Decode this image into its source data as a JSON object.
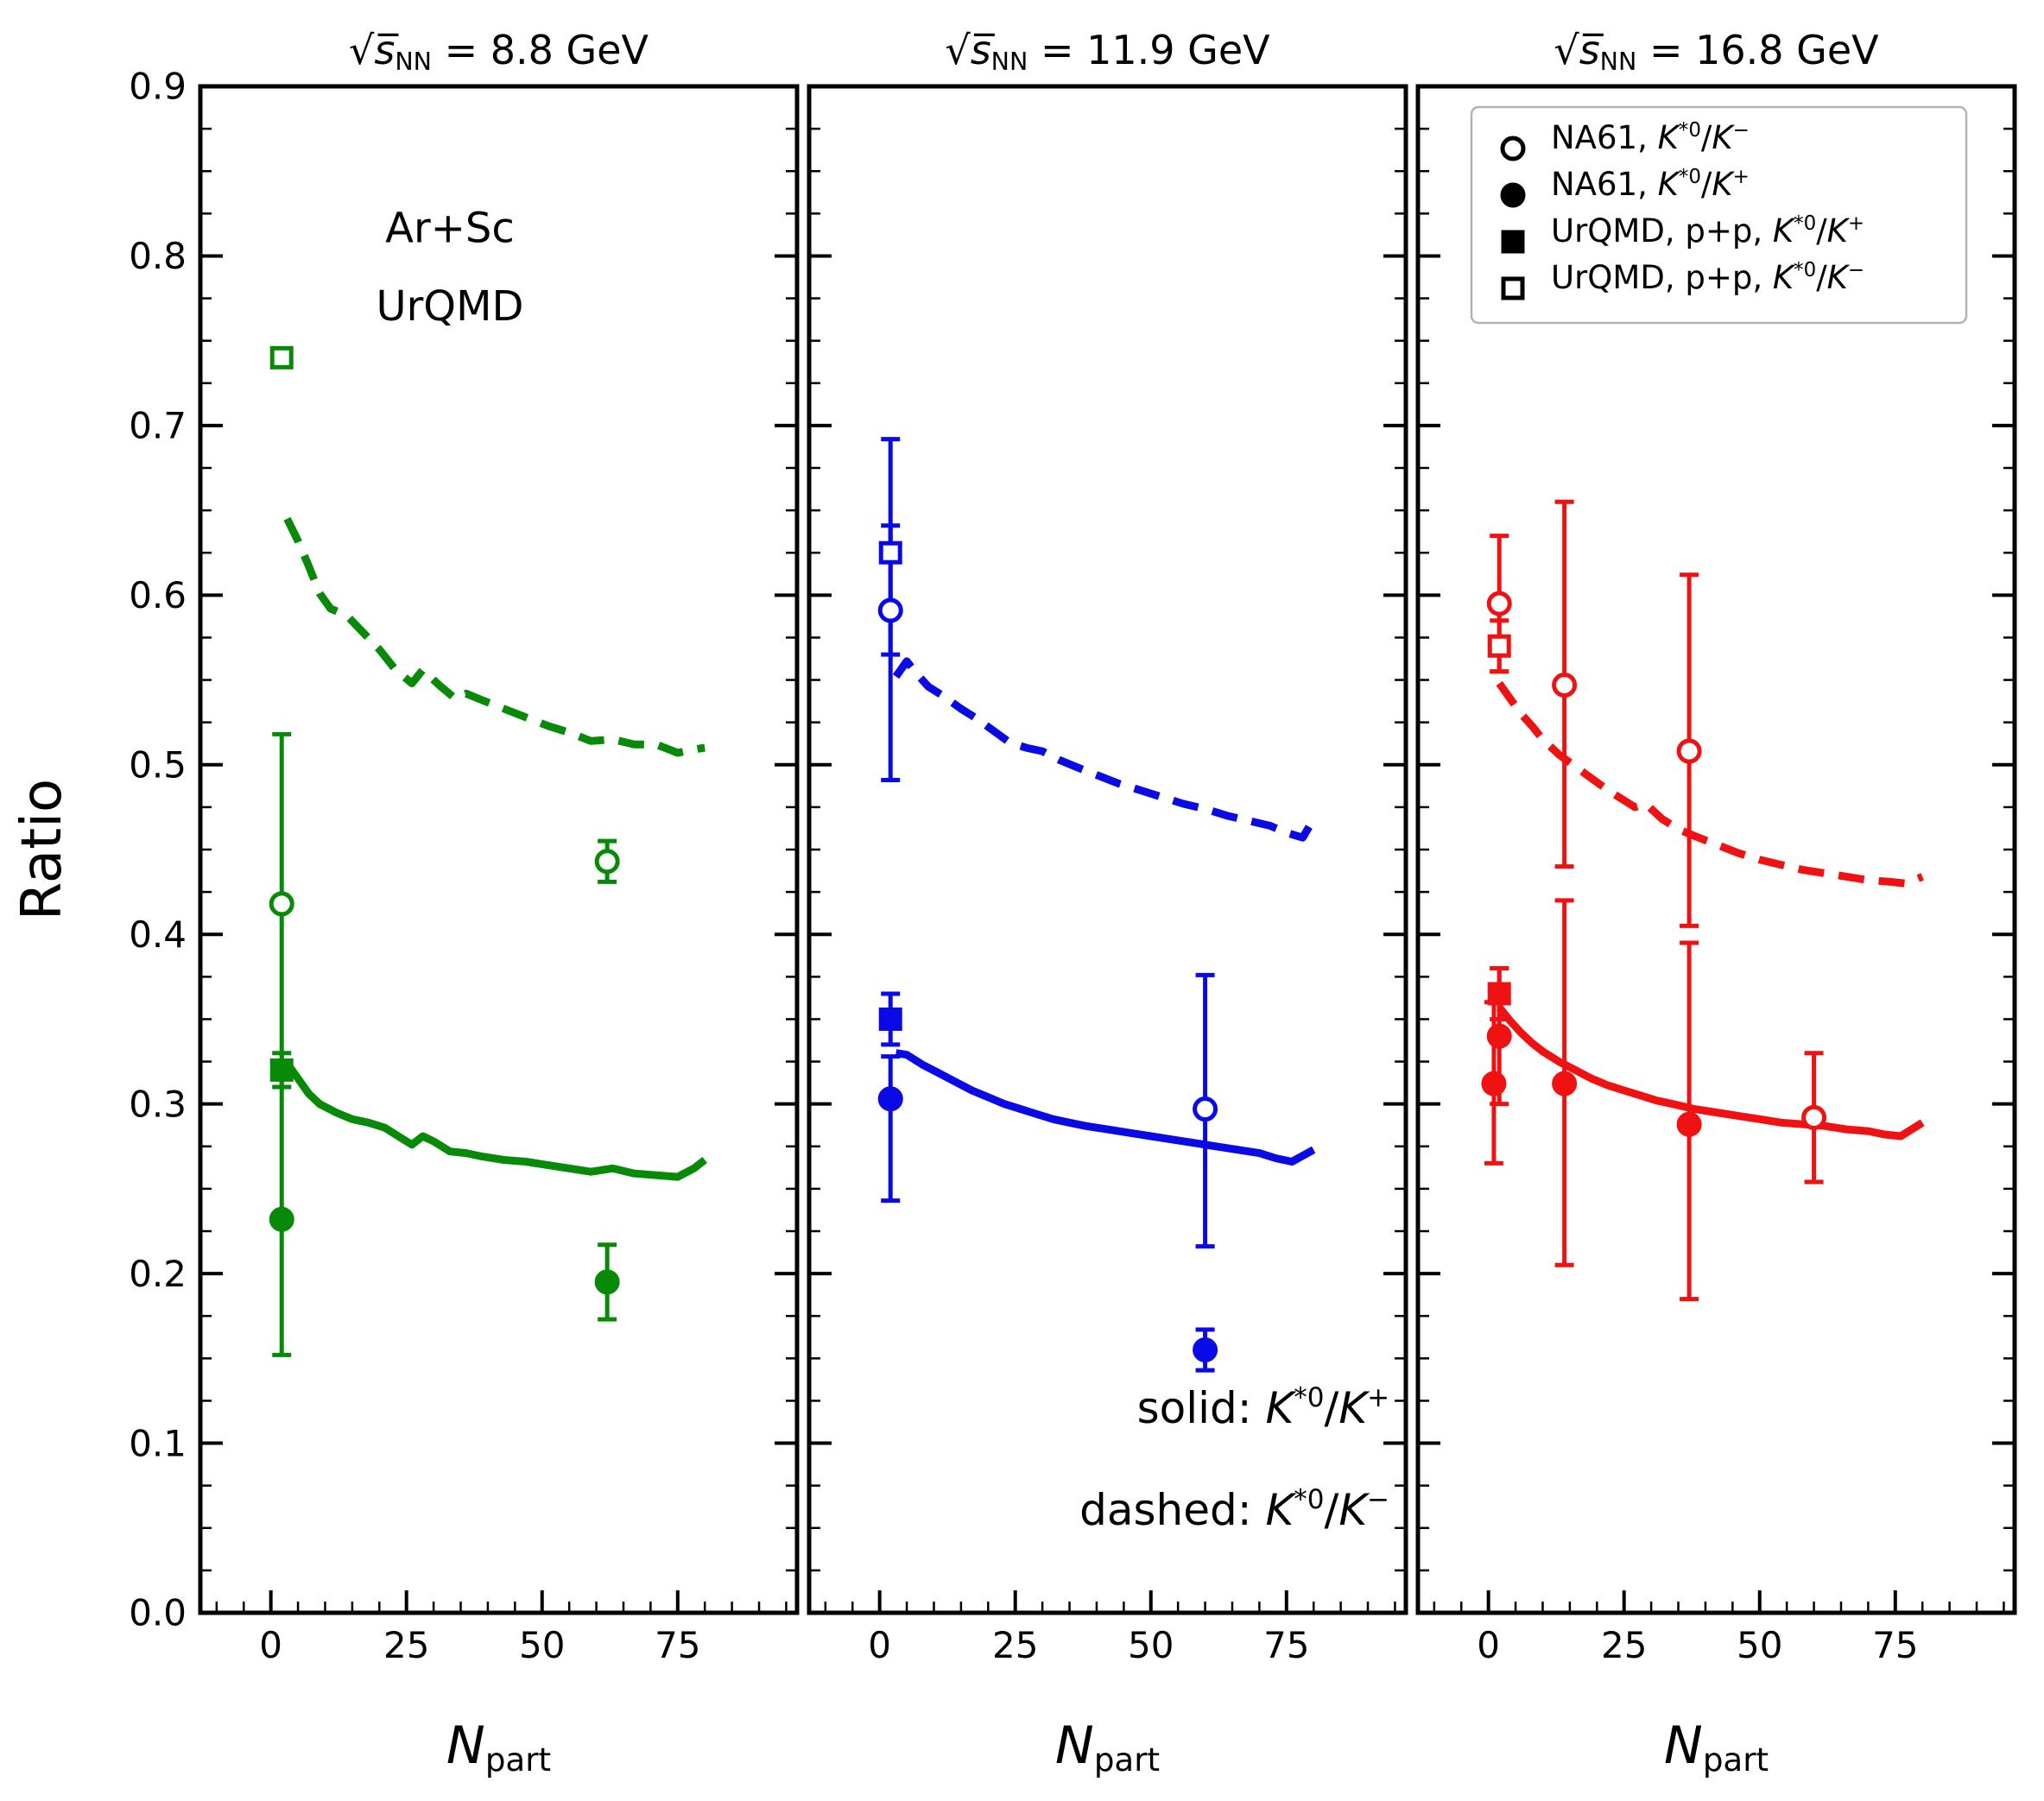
{
  "chart_data": {
    "type": "line",
    "ylabel": "Ratio",
    "xlabel": "$N$_{part}",
    "ylim": [
      0.0,
      0.9
    ],
    "xlim": [
      -13,
      97
    ],
    "y_tick_labels": [
      "0.0",
      "0.1",
      "0.2",
      "0.3",
      "0.4",
      "0.5",
      "0.6",
      "0.7",
      "0.8",
      "0.9"
    ],
    "x_major_ticks": [
      0,
      25,
      50,
      75
    ],
    "x_tick_labels": [
      "0",
      "25",
      "50",
      "75"
    ],
    "y_minor_step": 0.025,
    "x_minor_step": 5,
    "grid": false,
    "legend_position": "top-right-panel-3",
    "line_style_note": {
      "panel": 1,
      "x": 94,
      "y": [
        0.112,
        0.052
      ],
      "lines": [
        "solid: $K$^{*0}/$K$^{+}",
        "dashed: $K$^{*0}/$K$^{−}"
      ]
    },
    "system_annotation": {
      "panel": 0,
      "x": 33,
      "y": [
        0.808,
        0.762
      ],
      "lines": [
        "Ar+Sc",
        "UrQMD"
      ]
    },
    "legend": {
      "panel": 2,
      "entries": [
        {
          "marker": "open-circle",
          "label": "NA61, $K$^{*0}/$K$^{−}"
        },
        {
          "marker": "filled-circle",
          "label": "NA61, $K$^{*0}/$K$^{+}"
        },
        {
          "marker": "filled-square",
          "label": "UrQMD, p+p, $K$^{*0}/$K$^{+}"
        },
        {
          "marker": "open-square",
          "label": "UrQMD, p+p, $K$^{*0}/$K$^{−}"
        }
      ]
    },
    "panels": [
      {
        "title": "√$s̅$_{NN} = 8.8 GeV",
        "color": "#078a07",
        "dashed_curve": [
          [
            3,
            0.645
          ],
          [
            5,
            0.632
          ],
          [
            7,
            0.617
          ],
          [
            9,
            0.601
          ],
          [
            11,
            0.592
          ],
          [
            14,
            0.588
          ],
          [
            17,
            0.578
          ],
          [
            20,
            0.568
          ],
          [
            23,
            0.556
          ],
          [
            26,
            0.548
          ],
          [
            28,
            0.556
          ],
          [
            31,
            0.547
          ],
          [
            34,
            0.539
          ],
          [
            36,
            0.542
          ],
          [
            39,
            0.538
          ],
          [
            43,
            0.533
          ],
          [
            47,
            0.528
          ],
          [
            51,
            0.523
          ],
          [
            55,
            0.519
          ],
          [
            59,
            0.514
          ],
          [
            63,
            0.515
          ],
          [
            67,
            0.512
          ],
          [
            71,
            0.512
          ],
          [
            75,
            0.507
          ],
          [
            78,
            0.509
          ],
          [
            80,
            0.51
          ]
        ],
        "solid_curve": [
          [
            3,
            0.324
          ],
          [
            5,
            0.315
          ],
          [
            7,
            0.306
          ],
          [
            9,
            0.3
          ],
          [
            12,
            0.295
          ],
          [
            15,
            0.291
          ],
          [
            18,
            0.289
          ],
          [
            21,
            0.286
          ],
          [
            24,
            0.28
          ],
          [
            26,
            0.276
          ],
          [
            28,
            0.281
          ],
          [
            30,
            0.278
          ],
          [
            33,
            0.272
          ],
          [
            36,
            0.271
          ],
          [
            39,
            0.269
          ],
          [
            43,
            0.267
          ],
          [
            47,
            0.266
          ],
          [
            51,
            0.264
          ],
          [
            55,
            0.262
          ],
          [
            59,
            0.26
          ],
          [
            63,
            0.262
          ],
          [
            67,
            0.259
          ],
          [
            71,
            0.258
          ],
          [
            75,
            0.257
          ],
          [
            78,
            0.262
          ],
          [
            80,
            0.267
          ]
        ],
        "points": [
          {
            "marker": "open-square",
            "x": 2,
            "y": 0.74,
            "lo": 0,
            "hi": 0
          },
          {
            "marker": "filled-square",
            "x": 2,
            "y": 0.32,
            "lo": 0.01,
            "hi": 0.01
          },
          {
            "marker": "open-circle",
            "x": 2,
            "y": 0.418,
            "lo": 0.1,
            "hi": 0.1
          },
          {
            "marker": "filled-circle",
            "x": 2,
            "y": 0.232,
            "lo": 0.08,
            "hi": 0.09
          },
          {
            "marker": "open-circle",
            "x": 62,
            "y": 0.443,
            "lo": 0.012,
            "hi": 0.012
          },
          {
            "marker": "filled-circle",
            "x": 62,
            "y": 0.195,
            "lo": 0.022,
            "hi": 0.022
          }
        ]
      },
      {
        "title": "√$s̅$_{NN} = 11.9 GeV",
        "color": "#0a0ae6",
        "dashed_curve": [
          [
            3,
            0.552
          ],
          [
            5,
            0.561
          ],
          [
            7,
            0.553
          ],
          [
            9,
            0.546
          ],
          [
            12,
            0.54
          ],
          [
            15,
            0.533
          ],
          [
            18,
            0.527
          ],
          [
            21,
            0.52
          ],
          [
            24,
            0.513
          ],
          [
            27,
            0.51
          ],
          [
            30,
            0.508
          ],
          [
            33,
            0.503
          ],
          [
            36,
            0.499
          ],
          [
            40,
            0.494
          ],
          [
            44,
            0.489
          ],
          [
            48,
            0.485
          ],
          [
            52,
            0.481
          ],
          [
            56,
            0.477
          ],
          [
            60,
            0.474
          ],
          [
            64,
            0.47
          ],
          [
            68,
            0.467
          ],
          [
            72,
            0.464
          ],
          [
            75,
            0.46
          ],
          [
            78,
            0.457
          ],
          [
            80,
            0.468
          ]
        ],
        "solid_curve": [
          [
            3,
            0.33
          ],
          [
            5,
            0.329
          ],
          [
            8,
            0.323
          ],
          [
            11,
            0.318
          ],
          [
            14,
            0.313
          ],
          [
            17,
            0.308
          ],
          [
            20,
            0.304
          ],
          [
            23,
            0.3
          ],
          [
            26,
            0.297
          ],
          [
            29,
            0.294
          ],
          [
            32,
            0.291
          ],
          [
            35,
            0.289
          ],
          [
            38,
            0.287
          ],
          [
            42,
            0.285
          ],
          [
            46,
            0.283
          ],
          [
            50,
            0.281
          ],
          [
            54,
            0.279
          ],
          [
            58,
            0.277
          ],
          [
            62,
            0.275
          ],
          [
            66,
            0.273
          ],
          [
            70,
            0.271
          ],
          [
            73,
            0.268
          ],
          [
            76,
            0.266
          ],
          [
            80,
            0.273
          ]
        ],
        "points": [
          {
            "marker": "open-square",
            "x": 2,
            "y": 0.625,
            "lo": 0.06,
            "hi": 0.067
          },
          {
            "marker": "open-circle",
            "x": 2,
            "y": 0.591,
            "lo": 0.1,
            "hi": 0.05
          },
          {
            "marker": "filled-square",
            "x": 2,
            "y": 0.35,
            "lo": 0.015,
            "hi": 0.015
          },
          {
            "marker": "filled-circle",
            "x": 2,
            "y": 0.303,
            "lo": 0.06,
            "hi": 0.025
          },
          {
            "marker": "open-circle",
            "x": 60,
            "y": 0.297,
            "lo": 0.081,
            "hi": 0.079
          },
          {
            "marker": "filled-circle",
            "x": 60,
            "y": 0.155,
            "lo": 0.012,
            "hi": 0.012
          }
        ]
      },
      {
        "title": "√$s̅$_{NN} = 16.8 GeV",
        "color": "#f01212",
        "dashed_curve": [
          [
            2,
            0.548
          ],
          [
            4,
            0.539
          ],
          [
            6,
            0.53
          ],
          [
            8,
            0.523
          ],
          [
            10,
            0.515
          ],
          [
            13,
            0.506
          ],
          [
            16,
            0.499
          ],
          [
            19,
            0.492
          ],
          [
            22,
            0.485
          ],
          [
            25,
            0.479
          ],
          [
            27,
            0.475
          ],
          [
            29,
            0.477
          ],
          [
            32,
            0.468
          ],
          [
            35,
            0.462
          ],
          [
            38,
            0.458
          ],
          [
            42,
            0.453
          ],
          [
            46,
            0.448
          ],
          [
            50,
            0.444
          ],
          [
            54,
            0.441
          ],
          [
            58,
            0.438
          ],
          [
            62,
            0.436
          ],
          [
            66,
            0.434
          ],
          [
            70,
            0.432
          ],
          [
            74,
            0.431
          ],
          [
            77,
            0.43
          ],
          [
            80,
            0.434
          ]
        ],
        "solid_curve": [
          [
            2,
            0.357
          ],
          [
            4,
            0.349
          ],
          [
            6,
            0.342
          ],
          [
            8,
            0.336
          ],
          [
            10,
            0.331
          ],
          [
            13,
            0.325
          ],
          [
            16,
            0.32
          ],
          [
            19,
            0.315
          ],
          [
            22,
            0.311
          ],
          [
            25,
            0.308
          ],
          [
            28,
            0.305
          ],
          [
            31,
            0.302
          ],
          [
            34,
            0.3
          ],
          [
            38,
            0.297
          ],
          [
            42,
            0.295
          ],
          [
            46,
            0.293
          ],
          [
            50,
            0.291
          ],
          [
            54,
            0.289
          ],
          [
            58,
            0.288
          ],
          [
            62,
            0.287
          ],
          [
            66,
            0.285
          ],
          [
            70,
            0.284
          ],
          [
            73,
            0.282
          ],
          [
            76,
            0.281
          ],
          [
            80,
            0.289
          ]
        ],
        "points": [
          {
            "marker": "open-circle",
            "x": 2,
            "y": 0.595,
            "lo": 0.04,
            "hi": 0.04
          },
          {
            "marker": "open-square",
            "x": 2,
            "y": 0.57,
            "lo": 0.015,
            "hi": 0.015
          },
          {
            "marker": "filled-square",
            "x": 2,
            "y": 0.365,
            "lo": 0.015,
            "hi": 0.015
          },
          {
            "marker": "filled-circle",
            "x": 2,
            "y": 0.34,
            "lo": 0.04,
            "hi": 0.04
          },
          {
            "marker": "filled-circle",
            "x": 1,
            "y": 0.312,
            "lo": 0.047,
            "hi": 0.048
          },
          {
            "marker": "open-circle",
            "x": 14,
            "y": 0.547,
            "lo": 0.107,
            "hi": 0.108
          },
          {
            "marker": "filled-circle",
            "x": 14,
            "y": 0.312,
            "lo": 0.107,
            "hi": 0.108
          },
          {
            "marker": "open-circle",
            "x": 37,
            "y": 0.508,
            "lo": 0.103,
            "hi": 0.104
          },
          {
            "marker": "filled-circle",
            "x": 37,
            "y": 0.288,
            "lo": 0.103,
            "hi": 0.107
          },
          {
            "marker": "open-circle",
            "x": 60,
            "y": 0.292,
            "lo": 0.038,
            "hi": 0.038
          }
        ]
      }
    ]
  }
}
